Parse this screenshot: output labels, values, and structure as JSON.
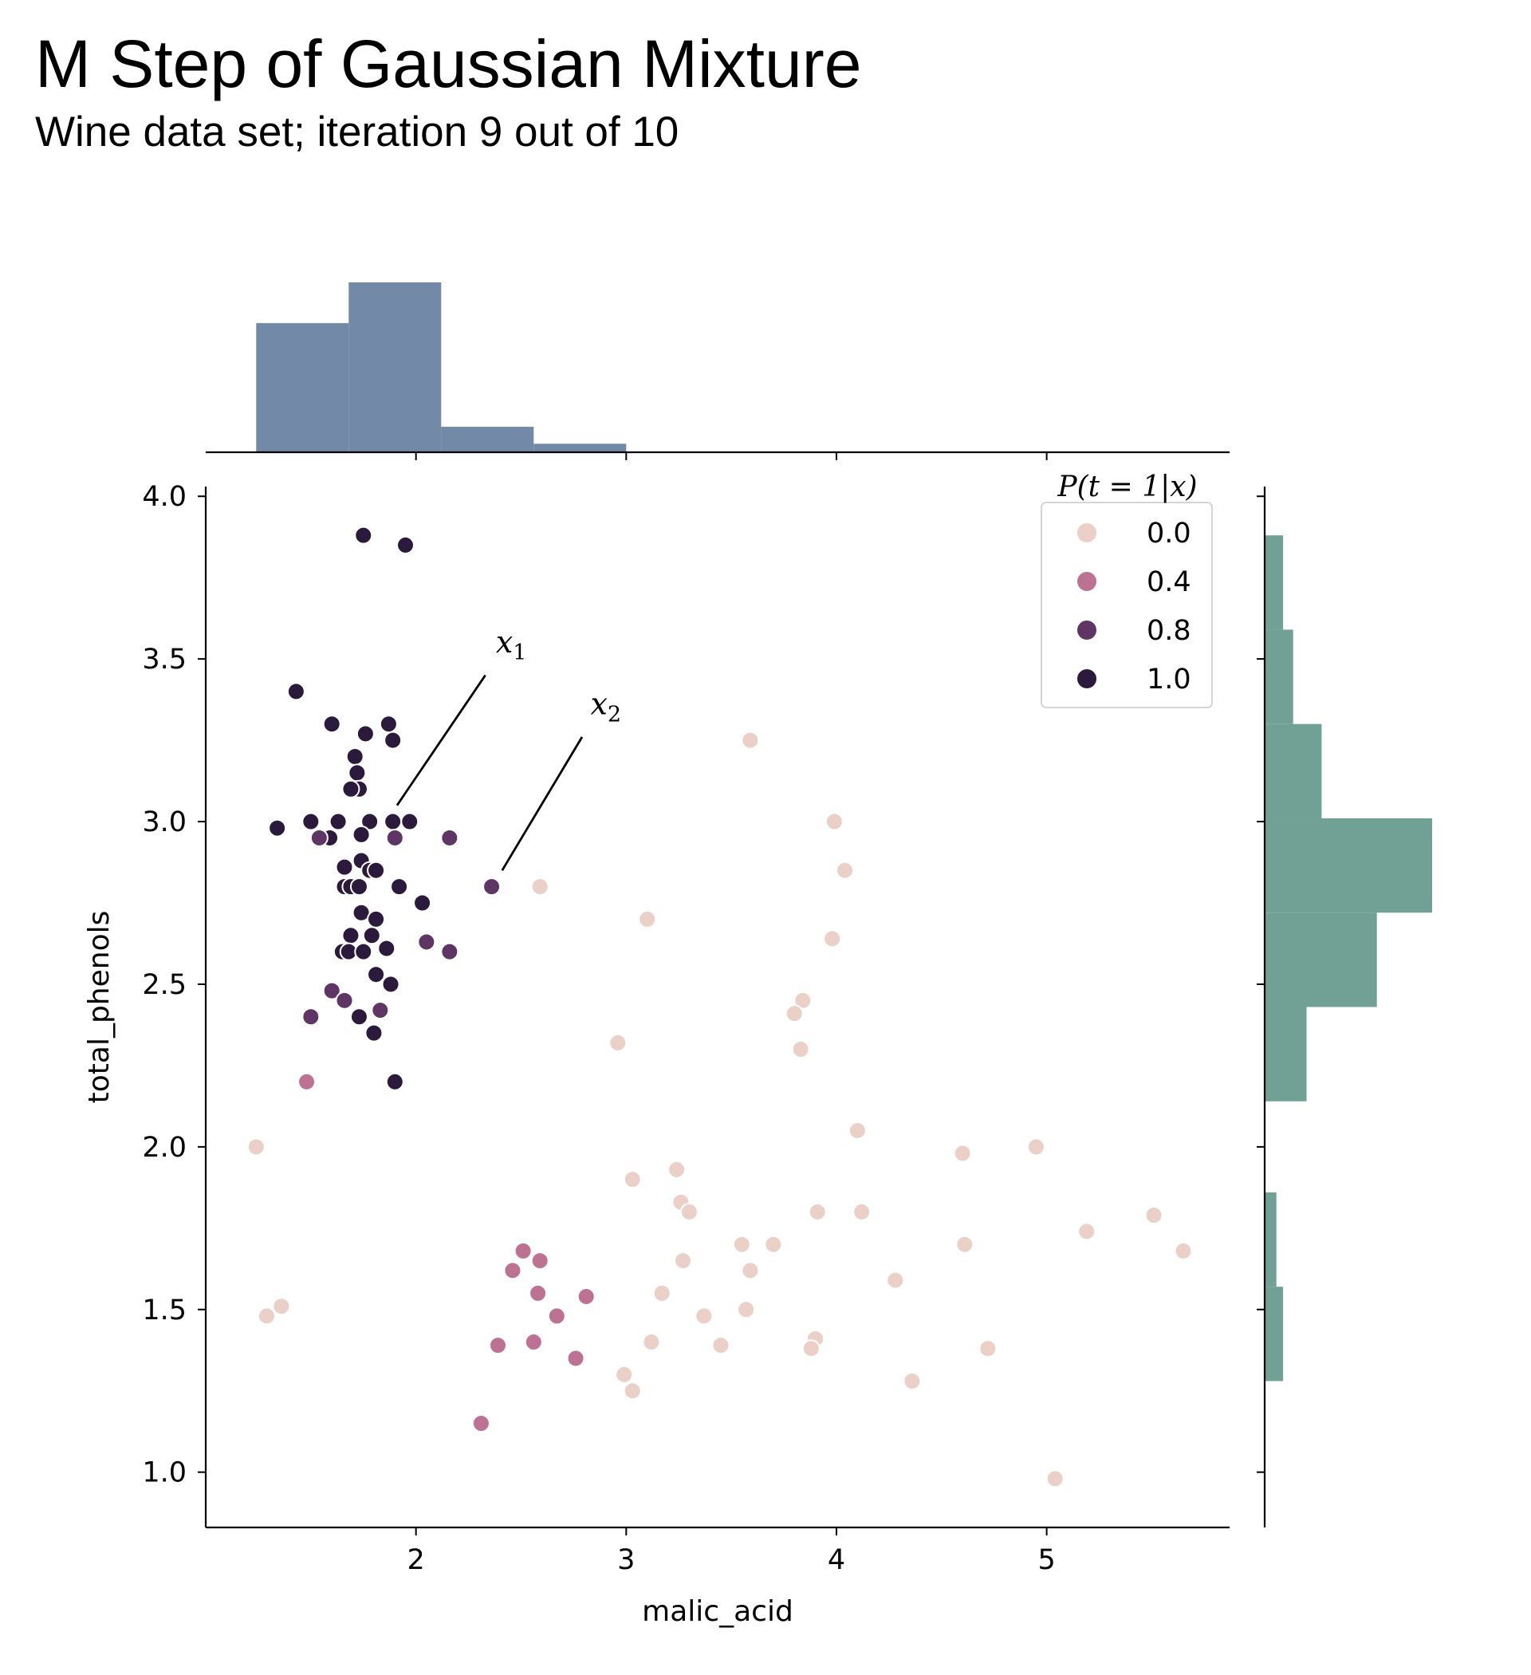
{
  "chart_data": {
    "type": "scatter",
    "title": "M Step of Gaussian Mixture",
    "subtitle": "Wine data set; iteration 9 out of 10",
    "xlabel": "malic_acid",
    "ylabel": "total_phenols",
    "xlim": [
      1.0,
      5.87
    ],
    "ylim": [
      0.83,
      4.03
    ],
    "xticks": [
      "2",
      "3",
      "4",
      "5"
    ],
    "yticks": [
      "1.0",
      "1.5",
      "2.0",
      "2.5",
      "3.0",
      "3.5",
      "4.0"
    ],
    "grid": false,
    "legend": {
      "title": "P(t = 1|x)",
      "placement": "top-right",
      "entries": [
        {
          "label": "0.0",
          "color": "#ebd0c7"
        },
        {
          "label": "0.4",
          "color": "#bd7293"
        },
        {
          "label": "0.8",
          "color": "#5e3564"
        },
        {
          "label": "1.0",
          "color": "#2b1a3c"
        }
      ]
    },
    "annotations": [
      {
        "text": "x",
        "sub": "1",
        "text_x": 2.38,
        "text_y": 3.52,
        "line_from": [
          2.33,
          3.45
        ],
        "line_to": [
          1.91,
          3.05
        ]
      },
      {
        "text": "x",
        "sub": "2",
        "text_x": 2.83,
        "text_y": 3.33,
        "line_from": [
          2.79,
          3.26
        ],
        "line_to": [
          2.41,
          2.85
        ]
      }
    ],
    "points": [
      {
        "x": 1.75,
        "y": 3.88,
        "p": 1.0
      },
      {
        "x": 1.95,
        "y": 3.85,
        "p": 1.0
      },
      {
        "x": 1.43,
        "y": 3.4,
        "p": 1.0
      },
      {
        "x": 1.6,
        "y": 3.3,
        "p": 1.0
      },
      {
        "x": 1.87,
        "y": 3.3,
        "p": 1.0
      },
      {
        "x": 1.76,
        "y": 3.27,
        "p": 1.0
      },
      {
        "x": 1.89,
        "y": 3.25,
        "p": 1.0
      },
      {
        "x": 1.71,
        "y": 3.2,
        "p": 1.0
      },
      {
        "x": 1.72,
        "y": 3.15,
        "p": 1.0
      },
      {
        "x": 1.73,
        "y": 3.1,
        "p": 1.0
      },
      {
        "x": 1.69,
        "y": 3.1,
        "p": 1.0
      },
      {
        "x": 1.5,
        "y": 3.0,
        "p": 1.0
      },
      {
        "x": 1.63,
        "y": 3.0,
        "p": 1.0
      },
      {
        "x": 1.78,
        "y": 3.0,
        "p": 1.0
      },
      {
        "x": 1.89,
        "y": 3.0,
        "p": 1.0
      },
      {
        "x": 1.97,
        "y": 3.0,
        "p": 1.0
      },
      {
        "x": 1.34,
        "y": 2.98,
        "p": 1.0
      },
      {
        "x": 1.74,
        "y": 2.96,
        "p": 1.0
      },
      {
        "x": 1.59,
        "y": 2.95,
        "p": 1.0
      },
      {
        "x": 1.54,
        "y": 2.95,
        "p": 0.8
      },
      {
        "x": 1.9,
        "y": 2.95,
        "p": 0.8
      },
      {
        "x": 2.16,
        "y": 2.95,
        "p": 0.8
      },
      {
        "x": 1.74,
        "y": 2.88,
        "p": 1.0
      },
      {
        "x": 1.66,
        "y": 2.86,
        "p": 1.0
      },
      {
        "x": 1.78,
        "y": 2.85,
        "p": 1.0
      },
      {
        "x": 1.81,
        "y": 2.85,
        "p": 1.0
      },
      {
        "x": 1.66,
        "y": 2.8,
        "p": 1.0
      },
      {
        "x": 1.69,
        "y": 2.8,
        "p": 1.0
      },
      {
        "x": 1.73,
        "y": 2.8,
        "p": 1.0
      },
      {
        "x": 1.92,
        "y": 2.8,
        "p": 1.0
      },
      {
        "x": 2.03,
        "y": 2.75,
        "p": 1.0
      },
      {
        "x": 1.74,
        "y": 2.72,
        "p": 1.0
      },
      {
        "x": 1.81,
        "y": 2.7,
        "p": 1.0
      },
      {
        "x": 1.69,
        "y": 2.65,
        "p": 1.0
      },
      {
        "x": 1.79,
        "y": 2.65,
        "p": 1.0
      },
      {
        "x": 2.05,
        "y": 2.63,
        "p": 0.8
      },
      {
        "x": 1.86,
        "y": 2.61,
        "p": 1.0
      },
      {
        "x": 1.65,
        "y": 2.6,
        "p": 1.0
      },
      {
        "x": 1.68,
        "y": 2.6,
        "p": 1.0
      },
      {
        "x": 1.75,
        "y": 2.6,
        "p": 1.0
      },
      {
        "x": 2.16,
        "y": 2.6,
        "p": 0.8
      },
      {
        "x": 1.81,
        "y": 2.53,
        "p": 1.0
      },
      {
        "x": 1.88,
        "y": 2.5,
        "p": 1.0
      },
      {
        "x": 1.6,
        "y": 2.48,
        "p": 0.8
      },
      {
        "x": 1.66,
        "y": 2.45,
        "p": 0.8
      },
      {
        "x": 1.83,
        "y": 2.42,
        "p": 0.8
      },
      {
        "x": 1.5,
        "y": 2.4,
        "p": 0.8
      },
      {
        "x": 1.73,
        "y": 2.4,
        "p": 1.0
      },
      {
        "x": 1.8,
        "y": 2.35,
        "p": 1.0
      },
      {
        "x": 1.48,
        "y": 2.2,
        "p": 0.4
      },
      {
        "x": 1.9,
        "y": 2.2,
        "p": 1.0
      },
      {
        "x": 2.36,
        "y": 2.8,
        "p": 0.8
      },
      {
        "x": 2.59,
        "y": 2.8,
        "p": 0.0
      },
      {
        "x": 2.51,
        "y": 1.68,
        "p": 0.4
      },
      {
        "x": 2.59,
        "y": 1.65,
        "p": 0.4
      },
      {
        "x": 2.46,
        "y": 1.62,
        "p": 0.4
      },
      {
        "x": 2.58,
        "y": 1.55,
        "p": 0.4
      },
      {
        "x": 2.81,
        "y": 1.54,
        "p": 0.4
      },
      {
        "x": 2.67,
        "y": 1.48,
        "p": 0.4
      },
      {
        "x": 2.56,
        "y": 1.4,
        "p": 0.4
      },
      {
        "x": 2.39,
        "y": 1.39,
        "p": 0.4
      },
      {
        "x": 2.76,
        "y": 1.35,
        "p": 0.4
      },
      {
        "x": 2.31,
        "y": 1.15,
        "p": 0.4
      },
      {
        "x": 3.59,
        "y": 3.25,
        "p": 0.0
      },
      {
        "x": 3.99,
        "y": 3.0,
        "p": 0.0
      },
      {
        "x": 4.04,
        "y": 2.85,
        "p": 0.0
      },
      {
        "x": 3.1,
        "y": 2.7,
        "p": 0.0
      },
      {
        "x": 3.98,
        "y": 2.64,
        "p": 0.0
      },
      {
        "x": 3.84,
        "y": 2.45,
        "p": 0.0
      },
      {
        "x": 3.8,
        "y": 2.41,
        "p": 0.0
      },
      {
        "x": 2.96,
        "y": 2.32,
        "p": 0.0
      },
      {
        "x": 3.83,
        "y": 2.3,
        "p": 0.0
      },
      {
        "x": 1.24,
        "y": 2.0,
        "p": 0.0
      },
      {
        "x": 4.1,
        "y": 2.05,
        "p": 0.0
      },
      {
        "x": 4.95,
        "y": 2.0,
        "p": 0.0
      },
      {
        "x": 4.6,
        "y": 1.98,
        "p": 0.0
      },
      {
        "x": 3.24,
        "y": 1.93,
        "p": 0.0
      },
      {
        "x": 3.03,
        "y": 1.9,
        "p": 0.0
      },
      {
        "x": 3.26,
        "y": 1.83,
        "p": 0.0
      },
      {
        "x": 3.3,
        "y": 1.8,
        "p": 0.0
      },
      {
        "x": 3.91,
        "y": 1.8,
        "p": 0.0
      },
      {
        "x": 4.12,
        "y": 1.8,
        "p": 0.0
      },
      {
        "x": 5.51,
        "y": 1.79,
        "p": 0.0
      },
      {
        "x": 5.19,
        "y": 1.74,
        "p": 0.0
      },
      {
        "x": 3.55,
        "y": 1.7,
        "p": 0.0
      },
      {
        "x": 3.7,
        "y": 1.7,
        "p": 0.0
      },
      {
        "x": 4.61,
        "y": 1.7,
        "p": 0.0
      },
      {
        "x": 5.65,
        "y": 1.68,
        "p": 0.0
      },
      {
        "x": 3.27,
        "y": 1.65,
        "p": 0.0
      },
      {
        "x": 3.59,
        "y": 1.62,
        "p": 0.0
      },
      {
        "x": 4.28,
        "y": 1.59,
        "p": 0.0
      },
      {
        "x": 3.17,
        "y": 1.55,
        "p": 0.0
      },
      {
        "x": 1.36,
        "y": 1.51,
        "p": 0.0
      },
      {
        "x": 3.57,
        "y": 1.5,
        "p": 0.0
      },
      {
        "x": 1.29,
        "y": 1.48,
        "p": 0.0
      },
      {
        "x": 3.37,
        "y": 1.48,
        "p": 0.0
      },
      {
        "x": 3.9,
        "y": 1.41,
        "p": 0.0
      },
      {
        "x": 3.12,
        "y": 1.4,
        "p": 0.0
      },
      {
        "x": 3.45,
        "y": 1.39,
        "p": 0.0
      },
      {
        "x": 3.88,
        "y": 1.38,
        "p": 0.0
      },
      {
        "x": 4.72,
        "y": 1.38,
        "p": 0.0
      },
      {
        "x": 2.99,
        "y": 1.3,
        "p": 0.0
      },
      {
        "x": 4.36,
        "y": 1.28,
        "p": 0.0
      },
      {
        "x": 3.03,
        "y": 1.25,
        "p": 0.0
      },
      {
        "x": 5.04,
        "y": 0.98,
        "p": 0.0
      }
    ],
    "x_histogram": {
      "color": "#7289a8",
      "bins": [
        {
          "x0": 1.24,
          "x1": 1.68,
          "count": 0.76
        },
        {
          "x0": 1.68,
          "x1": 2.12,
          "count": 1.0
        },
        {
          "x0": 2.12,
          "x1": 2.56,
          "count": 0.15
        },
        {
          "x0": 2.56,
          "x1": 3.0,
          "count": 0.05
        }
      ]
    },
    "y_histogram": {
      "color": "#71a194",
      "bins": [
        {
          "y0": 3.59,
          "y1": 3.88,
          "count": 0.11
        },
        {
          "y0": 3.3,
          "y1": 3.59,
          "count": 0.17
        },
        {
          "y0": 3.01,
          "y1": 3.3,
          "count": 0.34
        },
        {
          "y0": 2.72,
          "y1": 3.01,
          "count": 1.0
        },
        {
          "y0": 2.43,
          "y1": 2.72,
          "count": 0.67
        },
        {
          "y0": 2.14,
          "y1": 2.43,
          "count": 0.25
        },
        {
          "y0": 1.57,
          "y1": 1.86,
          "count": 0.07
        },
        {
          "y0": 1.28,
          "y1": 1.57,
          "count": 0.11
        }
      ]
    }
  }
}
